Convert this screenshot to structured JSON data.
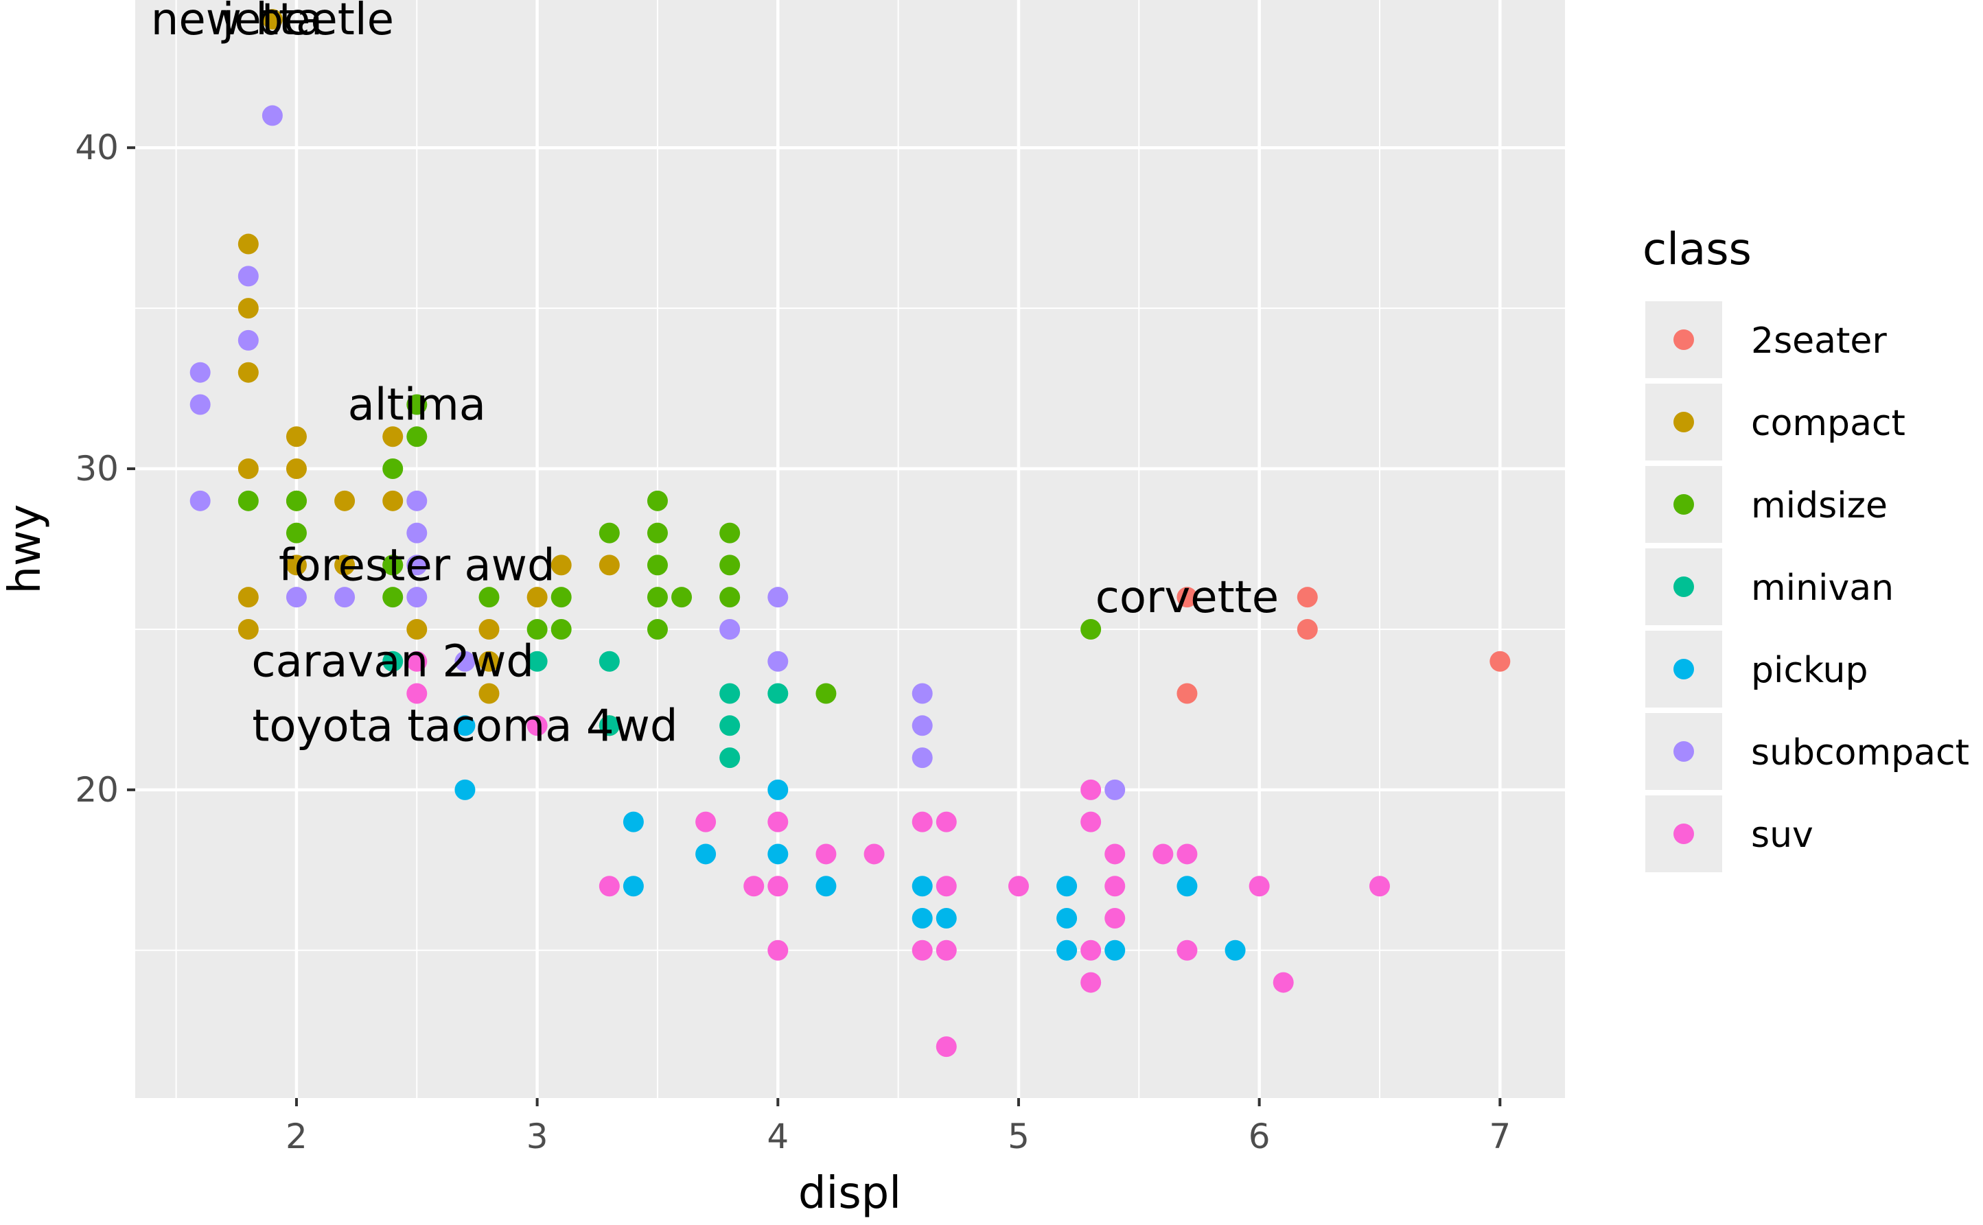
{
  "chart_data": {
    "type": "scatter",
    "xlabel": "displ",
    "ylabel": "hwy",
    "xlim": [
      1.33,
      7.27
    ],
    "ylim": [
      10.4,
      44.6
    ],
    "x_ticks": [
      2,
      3,
      4,
      5,
      6,
      7
    ],
    "y_ticks": [
      20,
      30,
      40
    ],
    "grid": true,
    "legend": {
      "title": "class",
      "placement": "right",
      "entries": [
        {
          "name": "2seater",
          "color": "#F8766D"
        },
        {
          "name": "compact",
          "color": "#C49A00"
        },
        {
          "name": "midsize",
          "color": "#53B400"
        },
        {
          "name": "minivan",
          "color": "#00C094"
        },
        {
          "name": "pickup",
          "color": "#00B6EB"
        },
        {
          "name": "subcompact",
          "color": "#A58AFF"
        },
        {
          "name": "suv",
          "color": "#FB61D7"
        }
      ]
    },
    "series": [
      {
        "name": "2seater",
        "points": [
          [
            5.7,
            26
          ],
          [
            5.7,
            23
          ],
          [
            6.2,
            26
          ],
          [
            6.2,
            25
          ],
          [
            7.0,
            24
          ]
        ]
      },
      {
        "name": "compact",
        "points": [
          [
            1.8,
            37
          ],
          [
            1.8,
            35
          ],
          [
            1.8,
            33
          ],
          [
            1.8,
            30
          ],
          [
            1.8,
            26
          ],
          [
            1.8,
            25
          ],
          [
            2.0,
            31
          ],
          [
            2.0,
            30
          ],
          [
            2.0,
            29
          ],
          [
            2.0,
            27
          ],
          [
            2.2,
            29
          ],
          [
            2.2,
            27
          ],
          [
            2.4,
            31
          ],
          [
            2.4,
            29
          ],
          [
            2.4,
            27
          ],
          [
            2.5,
            25
          ],
          [
            2.8,
            25
          ],
          [
            2.8,
            24
          ],
          [
            2.8,
            23
          ],
          [
            3.0,
            26
          ],
          [
            3.1,
            27
          ],
          [
            3.3,
            27
          ],
          [
            1.9,
            44
          ]
        ]
      },
      {
        "name": "midsize",
        "points": [
          [
            1.8,
            29
          ],
          [
            2.0,
            29
          ],
          [
            2.0,
            28
          ],
          [
            2.4,
            30
          ],
          [
            2.4,
            27
          ],
          [
            2.4,
            26
          ],
          [
            2.5,
            32
          ],
          [
            2.5,
            31
          ],
          [
            2.8,
            26
          ],
          [
            3.0,
            25
          ],
          [
            3.1,
            26
          ],
          [
            3.1,
            25
          ],
          [
            3.3,
            28
          ],
          [
            3.5,
            29
          ],
          [
            3.5,
            28
          ],
          [
            3.5,
            27
          ],
          [
            3.5,
            26
          ],
          [
            3.5,
            25
          ],
          [
            3.6,
            26
          ],
          [
            3.8,
            28
          ],
          [
            3.8,
            27
          ],
          [
            3.8,
            26
          ],
          [
            4.2,
            23
          ],
          [
            5.3,
            25
          ],
          [
            3.3,
            22
          ]
        ]
      },
      {
        "name": "minivan",
        "points": [
          [
            2.4,
            24
          ],
          [
            3.0,
            24
          ],
          [
            3.3,
            24
          ],
          [
            3.3,
            22
          ],
          [
            3.8,
            23
          ],
          [
            3.8,
            22
          ],
          [
            3.8,
            21
          ],
          [
            4.0,
            23
          ]
        ]
      },
      {
        "name": "pickup",
        "points": [
          [
            2.7,
            22
          ],
          [
            2.7,
            20
          ],
          [
            3.4,
            19
          ],
          [
            3.4,
            17
          ],
          [
            3.7,
            18
          ],
          [
            4.0,
            20
          ],
          [
            4.0,
            18
          ],
          [
            4.2,
            17
          ],
          [
            4.6,
            17
          ],
          [
            4.6,
            16
          ],
          [
            4.7,
            16
          ],
          [
            5.2,
            17
          ],
          [
            5.2,
            16
          ],
          [
            5.2,
            15
          ],
          [
            5.4,
            15
          ],
          [
            5.7,
            17
          ],
          [
            5.9,
            15
          ]
        ]
      },
      {
        "name": "subcompact",
        "points": [
          [
            1.6,
            33
          ],
          [
            1.6,
            32
          ],
          [
            1.6,
            29
          ],
          [
            1.8,
            36
          ],
          [
            1.8,
            34
          ],
          [
            1.9,
            41
          ],
          [
            2.0,
            26
          ],
          [
            2.2,
            26
          ],
          [
            2.5,
            29
          ],
          [
            2.5,
            28
          ],
          [
            2.5,
            26
          ],
          [
            2.5,
            27
          ],
          [
            2.7,
            24
          ],
          [
            3.8,
            25
          ],
          [
            4.0,
            26
          ],
          [
            4.0,
            24
          ],
          [
            4.6,
            23
          ],
          [
            4.6,
            22
          ],
          [
            4.6,
            21
          ],
          [
            5.4,
            20
          ]
        ]
      },
      {
        "name": "suv",
        "points": [
          [
            2.5,
            24
          ],
          [
            2.5,
            23
          ],
          [
            3.0,
            22
          ],
          [
            3.3,
            17
          ],
          [
            3.7,
            19
          ],
          [
            3.9,
            17
          ],
          [
            4.0,
            19
          ],
          [
            4.0,
            17
          ],
          [
            4.0,
            15
          ],
          [
            4.2,
            18
          ],
          [
            4.4,
            18
          ],
          [
            4.6,
            19
          ],
          [
            4.6,
            15
          ],
          [
            4.7,
            19
          ],
          [
            4.7,
            17
          ],
          [
            4.7,
            15
          ],
          [
            4.7,
            12
          ],
          [
            5.0,
            17
          ],
          [
            5.3,
            20
          ],
          [
            5.3,
            19
          ],
          [
            5.3,
            15
          ],
          [
            5.3,
            14
          ],
          [
            5.4,
            18
          ],
          [
            5.4,
            17
          ],
          [
            5.4,
            16
          ],
          [
            5.6,
            18
          ],
          [
            5.7,
            18
          ],
          [
            5.7,
            15
          ],
          [
            6.0,
            17
          ],
          [
            6.1,
            14
          ],
          [
            6.5,
            17
          ]
        ]
      }
    ],
    "annotations": [
      {
        "label": "new beetle",
        "x": 1.9,
        "y": 44
      },
      {
        "label": "jetta",
        "x": 1.9,
        "y": 44
      },
      {
        "label": "altima",
        "x": 2.5,
        "y": 32
      },
      {
        "label": "forester awd",
        "x": 2.5,
        "y": 27
      },
      {
        "label": "caravan 2wd",
        "x": 2.4,
        "y": 24
      },
      {
        "label": "toyota tacoma 4wd",
        "x": 2.7,
        "y": 22
      },
      {
        "label": "corvette",
        "x": 5.7,
        "y": 26
      }
    ]
  }
}
